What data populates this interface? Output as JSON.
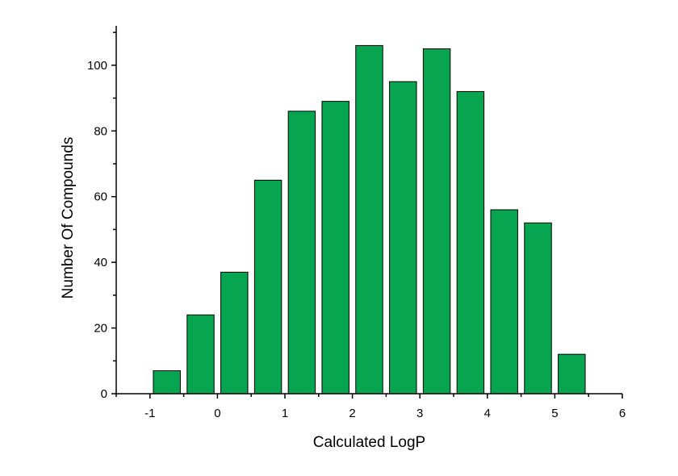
{
  "chart_data": {
    "type": "bar",
    "title": "",
    "xlabel": "Calculated LogP",
    "ylabel": "Number Of Compounds",
    "bar_color": "#07a550",
    "bin_width": 0.5,
    "bins": [
      {
        "x": -0.75,
        "value": 7
      },
      {
        "x": -0.25,
        "value": 24
      },
      {
        "x": 0.25,
        "value": 37
      },
      {
        "x": 0.75,
        "value": 65
      },
      {
        "x": 1.25,
        "value": 86
      },
      {
        "x": 1.75,
        "value": 89
      },
      {
        "x": 2.25,
        "value": 106
      },
      {
        "x": 2.75,
        "value": 95
      },
      {
        "x": 3.25,
        "value": 105
      },
      {
        "x": 3.75,
        "value": 92
      },
      {
        "x": 4.25,
        "value": 56
      },
      {
        "x": 4.75,
        "value": 52
      },
      {
        "x": 5.25,
        "value": 12
      }
    ],
    "xlim": [
      -1.5,
      6
    ],
    "ylim": [
      0,
      112
    ],
    "x_ticks": [
      -1,
      0,
      1,
      2,
      3,
      4,
      5,
      6
    ],
    "x_tick_labels": [
      "-1",
      "0",
      "1",
      "2",
      "3",
      "4",
      "5",
      "6"
    ],
    "y_ticks": [
      0,
      20,
      40,
      60,
      80,
      100
    ],
    "y_tick_labels": [
      "0",
      "20",
      "40",
      "60",
      "80",
      "100"
    ],
    "grid": false,
    "legend": "none"
  }
}
